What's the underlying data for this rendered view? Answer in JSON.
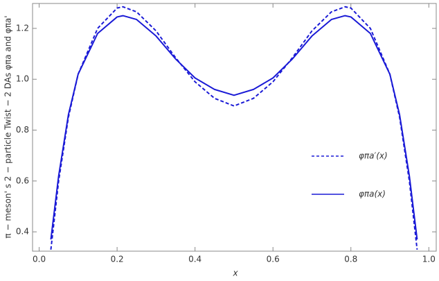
{
  "chart_data": {
    "type": "line",
    "y_label": "π − meson' s 2 − particle Twist − 2 DAs φπa and φπa'",
    "x_label": "x",
    "xlim": [
      -0.017,
      1.019
    ],
    "ylim": [
      0.324,
      1.298
    ],
    "xticks": [
      {
        "value": 0,
        "label": "0.0"
      },
      0.2,
      0.4,
      0.6,
      0.8,
      {
        "value": 1,
        "label": "1.0"
      }
    ],
    "yticks": [
      0.4,
      0.6,
      0.8,
      {
        "value": 1,
        "label": "1.0"
      },
      1.2
    ],
    "legend": "right",
    "x": [
      0.03,
      0.05,
      0.075,
      0.1,
      0.15,
      0.2,
      0.215,
      0.25,
      0.3,
      0.35,
      0.4,
      0.45,
      0.5,
      0.55,
      0.6,
      0.65,
      0.7,
      0.75,
      0.785,
      0.8,
      0.85,
      0.9,
      0.925,
      0.95,
      0.97
    ],
    "series": [
      {
        "name": "φπa′(x)",
        "color": "#1a1ad6",
        "dash": true,
        "values": [
          0.33,
          0.6,
          0.85,
          1.02,
          1.2,
          1.28,
          1.285,
          1.265,
          1.19,
          1.085,
          0.99,
          0.925,
          0.895,
          0.925,
          0.99,
          1.085,
          1.19,
          1.265,
          1.285,
          1.28,
          1.2,
          1.02,
          0.85,
          0.6,
          0.33
        ]
      },
      {
        "name": "φπa(x)",
        "color": "#1a1ad6",
        "dash": false,
        "values": [
          0.37,
          0.62,
          0.86,
          1.02,
          1.18,
          1.245,
          1.25,
          1.235,
          1.17,
          1.08,
          1.005,
          0.96,
          0.937,
          0.96,
          1.005,
          1.08,
          1.17,
          1.235,
          1.25,
          1.245,
          1.18,
          1.02,
          0.86,
          0.62,
          0.37
        ]
      }
    ]
  }
}
